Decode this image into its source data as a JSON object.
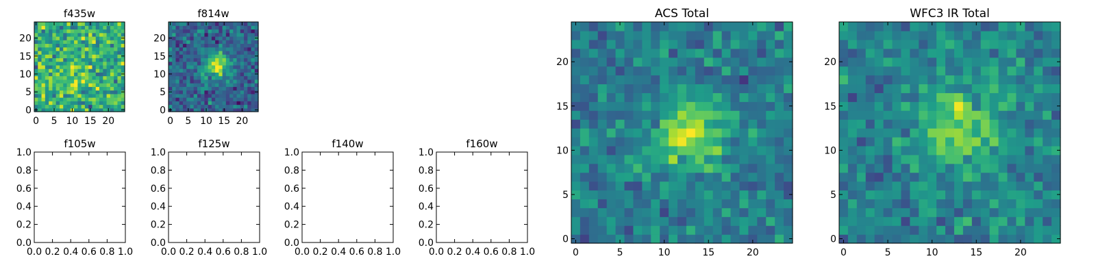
{
  "chart_data": [
    {
      "type": "heatmap",
      "title": "f435w",
      "grid_size": 25,
      "xlim": [
        -0.5,
        24.5
      ],
      "ylim": [
        -0.5,
        24.5
      ],
      "xticks": [
        0,
        5,
        10,
        15,
        20
      ],
      "yticks": [
        0,
        5,
        10,
        15,
        20
      ],
      "colormap": "viridis",
      "seed": 11,
      "peak": {
        "x": 10.0,
        "y": 11.0,
        "sigma": 4.0,
        "amp": 0.12
      },
      "base": 0.62,
      "noise": 0.22,
      "empty": false
    },
    {
      "type": "heatmap",
      "title": "f814w",
      "grid_size": 25,
      "xlim": [
        -0.5,
        24.5
      ],
      "ylim": [
        -0.5,
        24.5
      ],
      "xticks": [
        0,
        5,
        10,
        15,
        20
      ],
      "yticks": [
        0,
        5,
        10,
        15,
        20
      ],
      "colormap": "viridis",
      "seed": 23,
      "peak": {
        "x": 13.0,
        "y": 12.5,
        "sigma": 2.6,
        "amp": 0.55
      },
      "base": 0.32,
      "noise": 0.16,
      "empty": false
    },
    {
      "type": "scatter",
      "title": "f105w",
      "xlim": [
        0,
        1
      ],
      "ylim": [
        0,
        1
      ],
      "xticks": [
        "0.0",
        "0.2",
        "0.4",
        "0.6",
        "0.8",
        "1.0"
      ],
      "yticks": [
        "0.0",
        "0.2",
        "0.4",
        "0.6",
        "0.8",
        "1.0"
      ],
      "empty": true
    },
    {
      "type": "scatter",
      "title": "f125w",
      "xlim": [
        0,
        1
      ],
      "ylim": [
        0,
        1
      ],
      "xticks": [
        "0.0",
        "0.2",
        "0.4",
        "0.6",
        "0.8",
        "1.0"
      ],
      "yticks": [
        "0.0",
        "0.2",
        "0.4",
        "0.6",
        "0.8",
        "1.0"
      ],
      "empty": true
    },
    {
      "type": "scatter",
      "title": "f140w",
      "xlim": [
        0,
        1
      ],
      "ylim": [
        0,
        1
      ],
      "xticks": [
        "0.0",
        "0.2",
        "0.4",
        "0.6",
        "0.8",
        "1.0"
      ],
      "yticks": [
        "0.0",
        "0.2",
        "0.4",
        "0.6",
        "0.8",
        "1.0"
      ],
      "empty": true
    },
    {
      "type": "scatter",
      "title": "f160w",
      "xlim": [
        0,
        1
      ],
      "ylim": [
        0,
        1
      ],
      "xticks": [
        "0.0",
        "0.2",
        "0.4",
        "0.6",
        "0.8",
        "1.0"
      ],
      "yticks": [
        "0.0",
        "0.2",
        "0.4",
        "0.6",
        "0.8",
        "1.0"
      ],
      "empty": true
    },
    {
      "type": "heatmap",
      "title": "ACS Total",
      "grid_size": 25,
      "xlim": [
        -0.5,
        24.5
      ],
      "ylim": [
        -0.5,
        24.5
      ],
      "xticks": [
        0,
        5,
        10,
        15,
        20
      ],
      "yticks": [
        0,
        5,
        10,
        15,
        20
      ],
      "colormap": "viridis",
      "seed": 37,
      "peak": {
        "x": 13.0,
        "y": 12.0,
        "sigma": 2.8,
        "amp": 0.45
      },
      "base": 0.42,
      "noise": 0.14,
      "empty": false
    },
    {
      "type": "heatmap",
      "title": "WFC3 IR Total",
      "grid_size": 25,
      "xlim": [
        -0.5,
        24.5
      ],
      "ylim": [
        -0.5,
        24.5
      ],
      "xticks": [
        0,
        5,
        10,
        15,
        20
      ],
      "yticks": [
        0,
        5,
        10,
        15,
        20
      ],
      "colormap": "viridis",
      "seed": 53,
      "peak": {
        "x": 13.0,
        "y": 12.5,
        "sigma": 2.8,
        "amp": 0.42
      },
      "base": 0.45,
      "noise": 0.14,
      "empty": false
    }
  ]
}
